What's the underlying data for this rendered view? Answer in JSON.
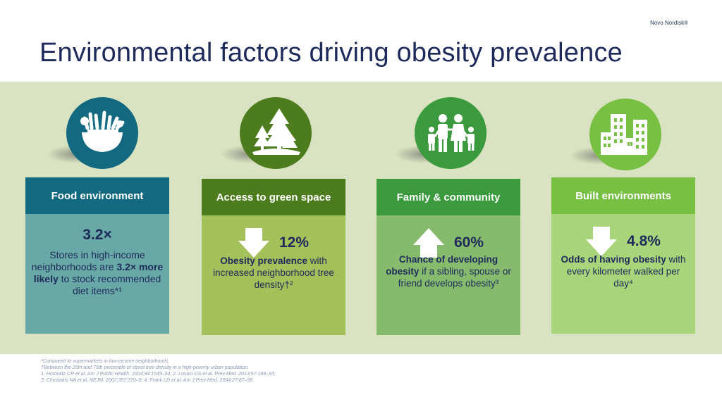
{
  "brand": "Novo Nordisk®",
  "title": "Environmental factors driving obesity prevalence",
  "cards": [
    {
      "heading": "Food environment",
      "icon": "food-bowl-icon",
      "stat": "3.2×",
      "desc_before": "Stores in high-income neighborhoods are ",
      "desc_bold": "3.2× more likely",
      "desc_after": " to stock recommended diet items*¹"
    },
    {
      "heading": "Access to green space",
      "icon": "trees-icon",
      "arrow": "down",
      "stat": "12%",
      "desc_bold": "Obesity prevalence",
      "desc_after": " with increased neighborhood tree density†²"
    },
    {
      "heading": "Family & community",
      "icon": "family-icon",
      "arrow": "up",
      "stat": "60%",
      "desc_bold": "Chance of developing obesity",
      "desc_after": " if a sibling, spouse or friend develops obesity³"
    },
    {
      "heading": "Built environments",
      "icon": "buildings-icon",
      "arrow": "down",
      "stat": "4.8%",
      "desc_bold": "Odds of having obesity",
      "desc_after": " with every kilometer walked per day⁴"
    }
  ],
  "footnotes": [
    "*Compared to supermarkets in low-income neighborhoods",
    "†Between the 25th and 75th percentile of street tree density in a high-poverty urban population.",
    "1. Horowitz CR et al. Am J Public Health. 2004;94:1549–54; 2. Lovasi GS et al. Prev Med. 2013;57:189–93;",
    "3. Christakis NA et al. NEJM. 2007;357:370–9; 4. Frank LD et al. Am J Prev Med. 2004;27:87–96."
  ],
  "colors": {
    "title": "#1e2a5a",
    "band": "#d9e3c1",
    "food": "#136a80",
    "green_space": "#4d7c1f",
    "family": "#3b9a3e",
    "built": "#77c043"
  }
}
